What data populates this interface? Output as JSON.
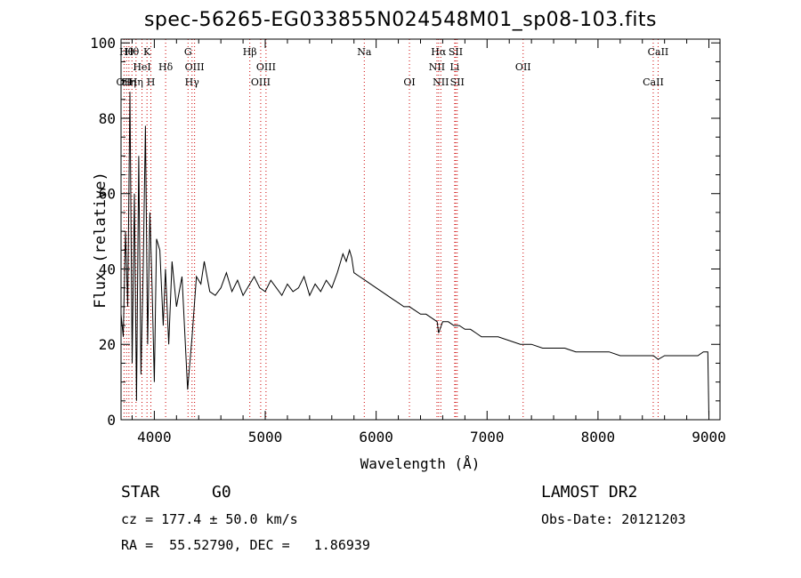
{
  "chart_data": {
    "type": "line",
    "title": "spec-56265-EG033855N024548M01_sp08-103.fits",
    "xlabel": "Wavelength (Å)",
    "ylabel": "Flux (relative)",
    "xlim": [
      3700,
      9100
    ],
    "ylim": [
      0,
      101
    ],
    "xticks": [
      "4000",
      "5000",
      "6000",
      "7000",
      "8000",
      "9000"
    ],
    "yticks": [
      "0",
      "20",
      "40",
      "60",
      "80",
      "100"
    ],
    "series": [
      {
        "x": [
          3700,
          3720,
          3740,
          3760,
          3780,
          3800,
          3820,
          3840,
          3860,
          3880,
          3900,
          3920,
          3940,
          3960,
          3980,
          4000,
          4020,
          4050,
          4080,
          4100,
          4130,
          4160,
          4200,
          4250,
          4300,
          4340,
          4380,
          4420,
          4450,
          4500,
          4550,
          4600,
          4650,
          4700,
          4750,
          4800,
          4861,
          4900,
          4950,
          5000,
          5050,
          5100,
          5150,
          5200,
          5250,
          5300,
          5350,
          5400,
          5450,
          5500,
          5550,
          5600,
          5650,
          5700,
          5730,
          5760,
          5780,
          5800,
          5850,
          5900,
          5950,
          6000,
          6050,
          6100,
          6150,
          6200,
          6250,
          6300,
          6350,
          6400,
          6450,
          6500,
          6550,
          6563,
          6600,
          6650,
          6700,
          6750,
          6800,
          6850,
          6900,
          6950,
          7000,
          7100,
          7200,
          7300,
          7400,
          7500,
          7600,
          7700,
          7800,
          7900,
          8000,
          8100,
          8200,
          8300,
          8400,
          8500,
          8542,
          8600,
          8700,
          8800,
          8900,
          8950,
          8990,
          9000
        ],
        "y": [
          28,
          22,
          50,
          30,
          87,
          15,
          60,
          5,
          70,
          12,
          40,
          78,
          20,
          55,
          35,
          10,
          48,
          45,
          25,
          40,
          20,
          42,
          30,
          38,
          8,
          22,
          38,
          36,
          42,
          34,
          33,
          35,
          39,
          34,
          37,
          33,
          36,
          38,
          35,
          34,
          37,
          35,
          33,
          36,
          34,
          35,
          38,
          33,
          36,
          34,
          37,
          35,
          39,
          44,
          42,
          45,
          43,
          39,
          38,
          37,
          36,
          35,
          34,
          33,
          32,
          31,
          30,
          30,
          29,
          28,
          28,
          27,
          26,
          23,
          26,
          26,
          25,
          25,
          24,
          24,
          23,
          22,
          22,
          22,
          21,
          20,
          20,
          19,
          19,
          19,
          18,
          18,
          18,
          18,
          17,
          17,
          17,
          17,
          16,
          17,
          17,
          17,
          17,
          18,
          18,
          1
        ]
      }
    ],
    "lines": [
      {
        "wl": 3727,
        "label": "OII",
        "row": 3
      },
      {
        "wl": 3750,
        "label": "Hθ",
        "row": 1
      },
      {
        "wl": 3771,
        "label": "Hη",
        "row": 3
      },
      {
        "wl": 3798,
        "label": "Hθ",
        "row": 1
      },
      {
        "wl": 3835,
        "label": "Hη",
        "row": 3
      },
      {
        "wl": 3889,
        "label": "HeI",
        "row": 2
      },
      {
        "wl": 3934,
        "label": "K",
        "row": 1
      },
      {
        "wl": 3969,
        "label": "H",
        "row": 3
      },
      {
        "wl": 4102,
        "label": "Hδ",
        "row": 2
      },
      {
        "wl": 4304,
        "label": "G",
        "row": 1
      },
      {
        "wl": 4340,
        "label": "Hγ",
        "row": 3
      },
      {
        "wl": 4363,
        "label": "OIII",
        "row": 2
      },
      {
        "wl": 4861,
        "label": "Hβ",
        "row": 1
      },
      {
        "wl": 4959,
        "label": "OIII",
        "row": 3
      },
      {
        "wl": 5007,
        "label": "OIII",
        "row": 2
      },
      {
        "wl": 5893,
        "label": "Na",
        "row": 1
      },
      {
        "wl": 6300,
        "label": "OI",
        "row": 3
      },
      {
        "wl": 6548,
        "label": "NII",
        "row": 2
      },
      {
        "wl": 6563,
        "label": "Hα",
        "row": 1
      },
      {
        "wl": 6583,
        "label": "NII",
        "row": 3
      },
      {
        "wl": 6708,
        "label": "Li",
        "row": 2
      },
      {
        "wl": 6717,
        "label": "SII",
        "row": 1
      },
      {
        "wl": 6731,
        "label": "SII",
        "row": 3
      },
      {
        "wl": 7325,
        "label": "OII",
        "row": 2
      },
      {
        "wl": 8498,
        "label": "CaII",
        "row": 3
      },
      {
        "wl": 8542,
        "label": "CaII",
        "row": 1
      }
    ]
  },
  "info": {
    "class_label": "STAR",
    "subclass": "G0",
    "survey": "LAMOST DR2",
    "cz": "cz = 177.4 ± 50.0 km/s",
    "obsdate": "Obs-Date: 20121203",
    "radec": "RA =  55.52790, DEC =   1.86939"
  }
}
